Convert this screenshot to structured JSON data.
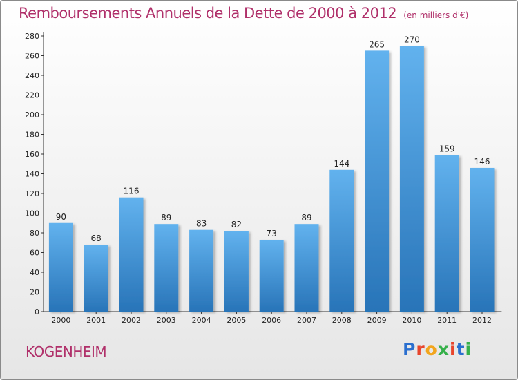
{
  "title": "Remboursements Annuels de la Dette de 2000 à 2012",
  "unit": "(en milliers d'€)",
  "city": "KOGENHEIM",
  "logo": {
    "letters": [
      "P",
      "r",
      "o",
      "x",
      "i",
      "t",
      "i"
    ]
  },
  "colors": {
    "title": "#b0306a",
    "bar_top": "#62b2ee",
    "bar_bottom": "#2874b8",
    "logo": [
      "#2a6fcf",
      "#e8452c",
      "#f2a51d",
      "#36b04a",
      "#e8452c",
      "#2a6fcf",
      "#36b04a"
    ]
  },
  "chart_data": {
    "type": "bar",
    "title": "Remboursements Annuels de la Dette de 2000 à 2012",
    "subtitle": "(en milliers d'€)",
    "categories": [
      "2000",
      "2001",
      "2002",
      "2003",
      "2004",
      "2005",
      "2006",
      "2007",
      "2008",
      "2009",
      "2010",
      "2011",
      "2012"
    ],
    "values": [
      90,
      68,
      116,
      89,
      83,
      82,
      73,
      89,
      144,
      265,
      270,
      159,
      146
    ],
    "ylim": [
      0,
      280
    ],
    "yticks": [
      0,
      20,
      40,
      60,
      80,
      100,
      120,
      140,
      160,
      180,
      200,
      220,
      240,
      260,
      280
    ],
    "grid": false,
    "data_labels": true
  }
}
